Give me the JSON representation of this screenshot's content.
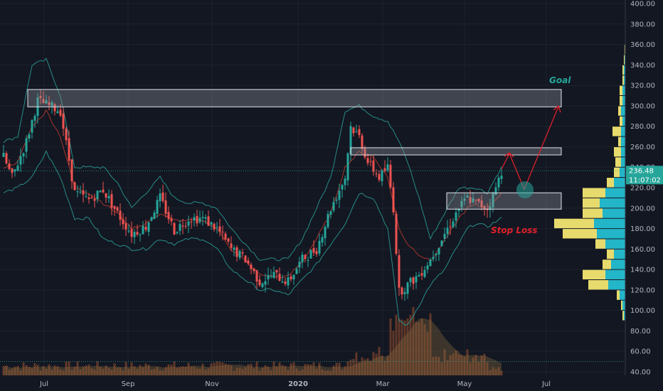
{
  "chart_data": {
    "type": "candlestick",
    "y_axis": {
      "range": [
        40,
        400
      ],
      "ticks": [
        "400.00",
        "380.00",
        "360.00",
        "340.00",
        "320.00",
        "300.00",
        "280.00",
        "260.00",
        "240.00",
        "220.00",
        "200.00",
        "180.00",
        "160.00",
        "140.00",
        "120.00",
        "100.00",
        "80.00",
        "60.00",
        "40.00"
      ]
    },
    "x_axis": {
      "ticks": [
        {
          "label": "Jul",
          "bold": false
        },
        {
          "label": "Sep",
          "bold": false
        },
        {
          "label": "Nov",
          "bold": false
        },
        {
          "label": "2020",
          "bold": true
        },
        {
          "label": "Mar",
          "bold": false
        },
        {
          "label": "May",
          "bold": false
        },
        {
          "label": "Jul",
          "bold": false
        }
      ]
    },
    "last_price": {
      "value": "236.48",
      "countdown": "11:07:02",
      "level": 236.48,
      "color": "#26a69a"
    },
    "series": [
      {
        "name": "price",
        "type": "candlestick",
        "up_color": "#26a69a",
        "down_color": "#ef5350",
        "keypoints": [
          [
            0,
            250
          ],
          [
            3,
            230
          ],
          [
            8,
            265
          ],
          [
            12,
            305
          ],
          [
            16,
            300
          ],
          [
            20,
            295
          ],
          [
            25,
            215
          ],
          [
            30,
            208
          ],
          [
            35,
            218
          ],
          [
            40,
            195
          ],
          [
            45,
            175
          ],
          [
            50,
            182
          ],
          [
            55,
            210
          ],
          [
            60,
            178
          ],
          [
            65,
            190
          ],
          [
            70,
            190
          ],
          [
            75,
            180
          ],
          [
            80,
            160
          ],
          [
            85,
            150
          ],
          [
            90,
            128
          ],
          [
            95,
            135
          ],
          [
            100,
            128
          ],
          [
            105,
            150
          ],
          [
            110,
            160
          ],
          [
            115,
            200
          ],
          [
            120,
            230
          ],
          [
            122,
            280
          ],
          [
            125,
            270
          ],
          [
            128,
            245
          ],
          [
            132,
            230
          ],
          [
            135,
            240
          ],
          [
            137,
            200
          ],
          [
            139,
            118
          ],
          [
            142,
            125
          ],
          [
            146,
            135
          ],
          [
            150,
            150
          ],
          [
            155,
            175
          ],
          [
            160,
            200
          ],
          [
            163,
            210
          ],
          [
            166,
            205
          ],
          [
            170,
            200
          ],
          [
            172,
            212
          ],
          [
            175,
            236
          ]
        ]
      },
      {
        "name": "bollinger-upper",
        "type": "line",
        "color": "#2aa198",
        "keypoints": [
          [
            0,
            265
          ],
          [
            5,
            270
          ],
          [
            10,
            340
          ],
          [
            15,
            345
          ],
          [
            20,
            310
          ],
          [
            25,
            240
          ],
          [
            30,
            240
          ],
          [
            35,
            240
          ],
          [
            40,
            225
          ],
          [
            45,
            200
          ],
          [
            50,
            215
          ],
          [
            55,
            230
          ],
          [
            60,
            210
          ],
          [
            65,
            205
          ],
          [
            70,
            205
          ],
          [
            75,
            200
          ],
          [
            80,
            180
          ],
          [
            85,
            165
          ],
          [
            90,
            150
          ],
          [
            95,
            150
          ],
          [
            100,
            150
          ],
          [
            105,
            170
          ],
          [
            110,
            200
          ],
          [
            115,
            230
          ],
          [
            120,
            295
          ],
          [
            125,
            300
          ],
          [
            130,
            290
          ],
          [
            135,
            285
          ],
          [
            139,
            265
          ],
          [
            142,
            245
          ],
          [
            146,
            210
          ],
          [
            150,
            170
          ],
          [
            155,
            195
          ],
          [
            160,
            220
          ],
          [
            163,
            220
          ],
          [
            166,
            220
          ],
          [
            170,
            215
          ],
          [
            175,
            240
          ]
        ]
      },
      {
        "name": "bollinger-lower",
        "type": "line",
        "color": "#2aa198",
        "keypoints": [
          [
            0,
            215
          ],
          [
            5,
            220
          ],
          [
            10,
            230
          ],
          [
            15,
            255
          ],
          [
            20,
            230
          ],
          [
            25,
            190
          ],
          [
            30,
            190
          ],
          [
            35,
            170
          ],
          [
            40,
            165
          ],
          [
            45,
            160
          ],
          [
            50,
            160
          ],
          [
            55,
            170
          ],
          [
            60,
            165
          ],
          [
            65,
            170
          ],
          [
            70,
            170
          ],
          [
            75,
            160
          ],
          [
            80,
            140
          ],
          [
            85,
            130
          ],
          [
            90,
            120
          ],
          [
            95,
            120
          ],
          [
            100,
            115
          ],
          [
            105,
            130
          ],
          [
            110,
            145
          ],
          [
            115,
            165
          ],
          [
            120,
            185
          ],
          [
            125,
            215
          ],
          [
            130,
            210
          ],
          [
            135,
            180
          ],
          [
            139,
            90
          ],
          [
            142,
            85
          ],
          [
            146,
            105
          ],
          [
            150,
            125
          ],
          [
            155,
            140
          ],
          [
            160,
            165
          ],
          [
            163,
            180
          ],
          [
            166,
            185
          ],
          [
            170,
            182
          ],
          [
            175,
            190
          ]
        ]
      },
      {
        "name": "bollinger-basis",
        "type": "line",
        "color": "#c0392b",
        "keypoints": [
          [
            0,
            240
          ],
          [
            5,
            245
          ],
          [
            10,
            280
          ],
          [
            15,
            295
          ],
          [
            20,
            270
          ],
          [
            25,
            220
          ],
          [
            30,
            215
          ],
          [
            35,
            205
          ],
          [
            40,
            195
          ],
          [
            45,
            180
          ],
          [
            50,
            185
          ],
          [
            55,
            195
          ],
          [
            60,
            188
          ],
          [
            65,
            188
          ],
          [
            70,
            188
          ],
          [
            75,
            180
          ],
          [
            80,
            160
          ],
          [
            85,
            148
          ],
          [
            90,
            135
          ],
          [
            95,
            133
          ],
          [
            100,
            133
          ],
          [
            105,
            148
          ],
          [
            110,
            170
          ],
          [
            115,
            195
          ],
          [
            120,
            240
          ],
          [
            125,
            255
          ],
          [
            130,
            250
          ],
          [
            135,
            230
          ],
          [
            139,
            180
          ],
          [
            142,
            165
          ],
          [
            146,
            155
          ],
          [
            150,
            148
          ],
          [
            155,
            168
          ],
          [
            160,
            190
          ],
          [
            163,
            200
          ],
          [
            166,
            203
          ],
          [
            170,
            200
          ],
          [
            175,
            215
          ]
        ]
      }
    ],
    "volume_profile": {
      "buy_color": "#26c6da",
      "sell_color": "#fff176",
      "rows": [
        [
          95,
          1,
          1
        ],
        [
          105,
          2,
          1
        ],
        [
          115,
          4,
          2
        ],
        [
          125,
          12,
          14
        ],
        [
          135,
          14,
          16
        ],
        [
          145,
          10,
          6
        ],
        [
          155,
          8,
          5
        ],
        [
          165,
          14,
          7
        ],
        [
          175,
          20,
          24
        ],
        [
          185,
          22,
          28
        ],
        [
          195,
          16,
          14
        ],
        [
          205,
          18,
          12
        ],
        [
          215,
          14,
          16
        ],
        [
          225,
          8,
          5
        ],
        [
          235,
          4,
          4
        ],
        [
          245,
          3,
          4
        ],
        [
          255,
          3,
          5
        ],
        [
          265,
          3,
          2
        ],
        [
          275,
          3,
          6
        ],
        [
          285,
          2,
          2
        ],
        [
          295,
          3,
          2
        ],
        [
          305,
          2,
          2
        ],
        [
          315,
          2,
          2
        ],
        [
          325,
          1,
          1
        ],
        [
          335,
          1,
          1
        ],
        [
          345,
          0.5,
          0.5
        ],
        [
          355,
          0.3,
          0.3
        ]
      ]
    },
    "volume_bars": {
      "color": "#a0522d",
      "ma_color": "#8d6e3f",
      "baseline_level": 50
    },
    "zones": [
      {
        "name": "goal-zone",
        "y_range": [
          299,
          316
        ],
        "x_range": [
          3,
          136
        ]
      },
      {
        "name": "resistance-zone",
        "y_range": [
          252,
          259
        ],
        "x_range": [
          86,
          136
        ]
      },
      {
        "name": "support-zone",
        "y_range": [
          199,
          215
        ],
        "x_range": [
          108,
          136
        ]
      }
    ],
    "annotations": [
      {
        "text": "Goal",
        "color": "#26a69a"
      },
      {
        "text": "Stop Loss",
        "color": "#e0202a"
      }
    ],
    "projection_path_color": "#e0202a",
    "projection_marker_color": "#26a69a"
  }
}
